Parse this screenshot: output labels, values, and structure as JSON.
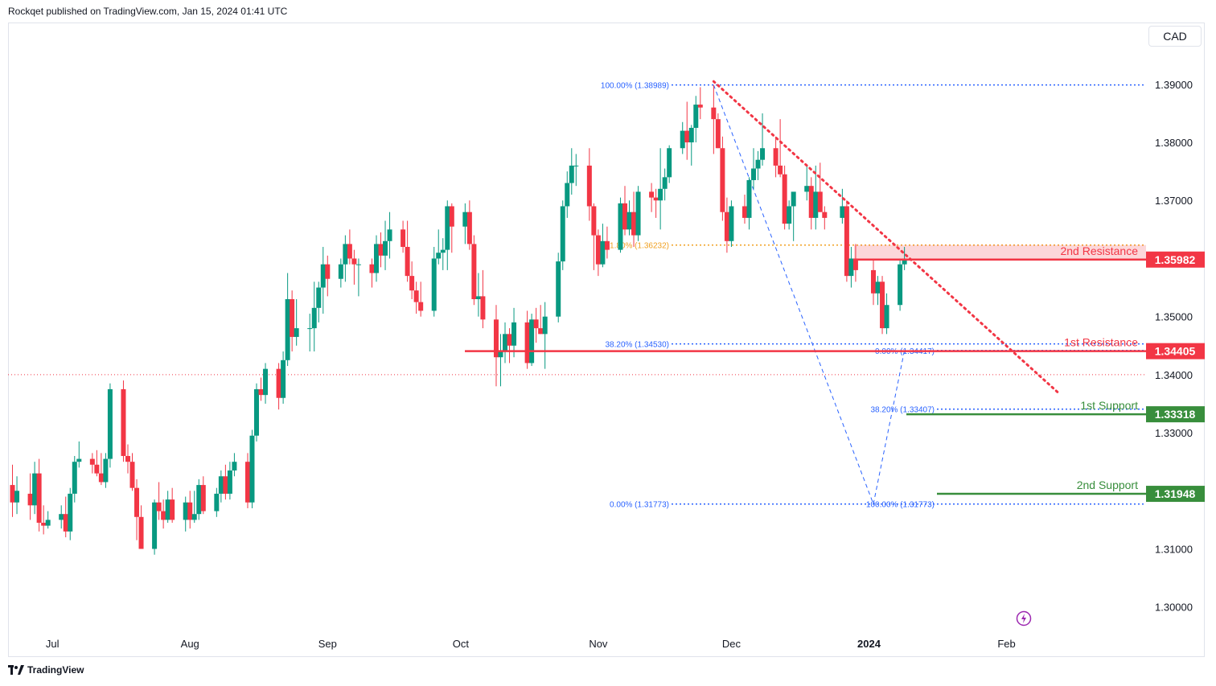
{
  "header": {
    "text": "Rockqet published on TradingView.com, Jan 15, 2024 01:41 UTC"
  },
  "footer": {
    "brand": "TradingView",
    "logo_icon": "tradingview-logo-icon"
  },
  "currency_label": "CAD",
  "colors": {
    "up": "#089981",
    "down": "#f23645",
    "resistance": "#f23645",
    "support": "#388e3c",
    "fib": "#2962ff",
    "fib_gold": "#f0a020",
    "trendline": "#f23645",
    "grid_text": "#131722"
  },
  "chart_data": {
    "type": "candlestick",
    "y_axis": {
      "ticks": [
        1.39,
        1.38,
        1.37,
        1.35,
        1.34,
        1.33,
        1.31,
        1.3
      ],
      "tick_labels": [
        "1.39000",
        "1.38000",
        "1.37000",
        "1.35000",
        "1.34000",
        "1.33000",
        "1.31000",
        "1.30000"
      ],
      "range": [
        1.2965,
        1.4005
      ]
    },
    "x_axis": {
      "labels": [
        {
          "date": "2023-07-01",
          "label": "Jul",
          "bold": false
        },
        {
          "date": "2023-08-01",
          "label": "Aug",
          "bold": false
        },
        {
          "date": "2023-09-01",
          "label": "Sep",
          "bold": false
        },
        {
          "date": "2023-10-01",
          "label": "Oct",
          "bold": false
        },
        {
          "date": "2023-11-01",
          "label": "Nov",
          "bold": false
        },
        {
          "date": "2023-12-01",
          "label": "Dec",
          "bold": false
        },
        {
          "date": "2024-01-01",
          "label": "2024",
          "bold": true
        },
        {
          "date": "2024-02-01",
          "label": "Feb",
          "bold": false
        }
      ],
      "range": [
        "2023-06-21",
        "2024-02-27"
      ]
    },
    "candles": [
      [
        "2023-06-22",
        1.321,
        1.3245,
        1.3155,
        1.318
      ],
      [
        "2023-06-23",
        1.318,
        1.3225,
        1.316,
        1.32
      ],
      [
        "2023-06-26",
        1.3195,
        1.323,
        1.315,
        1.3175
      ],
      [
        "2023-06-27",
        1.3175,
        1.325,
        1.316,
        1.323
      ],
      [
        "2023-06-28",
        1.323,
        1.3255,
        1.313,
        1.3145
      ],
      [
        "2023-06-29",
        1.3145,
        1.3175,
        1.3125,
        1.314
      ],
      [
        "2023-06-30",
        1.314,
        1.3165,
        1.3135,
        1.315
      ],
      [
        "2023-07-03",
        1.315,
        1.3175,
        1.3135,
        1.316
      ],
      [
        "2023-07-04",
        1.316,
        1.319,
        1.312,
        1.313
      ],
      [
        "2023-07-05",
        1.313,
        1.3205,
        1.3115,
        1.3195
      ],
      [
        "2023-07-06",
        1.3195,
        1.326,
        1.318,
        1.325
      ],
      [
        "2023-07-07",
        1.325,
        1.3285,
        1.324,
        1.3255
      ],
      [
        "2023-07-10",
        1.3255,
        1.3265,
        1.323,
        1.3245
      ],
      [
        "2023-07-11",
        1.3245,
        1.327,
        1.3225,
        1.323
      ],
      [
        "2023-07-12",
        1.323,
        1.3265,
        1.321,
        1.3215
      ],
      [
        "2023-07-13",
        1.3215,
        1.3265,
        1.3205,
        1.3255
      ],
      [
        "2023-07-14",
        1.3255,
        1.3385,
        1.324,
        1.3375
      ],
      [
        "2023-07-17",
        1.3375,
        1.339,
        1.325,
        1.326
      ],
      [
        "2023-07-18",
        1.326,
        1.328,
        1.323,
        1.325
      ],
      [
        "2023-07-19",
        1.325,
        1.3265,
        1.32,
        1.3205
      ],
      [
        "2023-07-20",
        1.3205,
        1.322,
        1.3115,
        1.3155
      ],
      [
        "2023-07-21",
        1.3155,
        1.3175,
        1.31,
        1.31
      ],
      [
        "2023-07-24",
        1.31,
        1.3185,
        1.309,
        1.318
      ],
      [
        "2023-07-25",
        1.318,
        1.3215,
        1.315,
        1.3165
      ],
      [
        "2023-07-26",
        1.3165,
        1.3185,
        1.3135,
        1.315
      ],
      [
        "2023-07-27",
        1.315,
        1.32,
        1.3145,
        1.3185
      ],
      [
        "2023-07-28",
        1.3185,
        1.3205,
        1.3145,
        1.315
      ],
      [
        "2023-07-31",
        1.315,
        1.319,
        1.313,
        1.318
      ],
      [
        "2023-08-01",
        1.318,
        1.32,
        1.3135,
        1.315
      ],
      [
        "2023-08-02",
        1.315,
        1.32,
        1.3145,
        1.316
      ],
      [
        "2023-08-03",
        1.316,
        1.322,
        1.315,
        1.321
      ],
      [
        "2023-08-04",
        1.321,
        1.3225,
        1.316,
        1.3165
      ],
      [
        "2023-08-07",
        1.3165,
        1.3205,
        1.3155,
        1.3195
      ],
      [
        "2023-08-08",
        1.3195,
        1.3235,
        1.318,
        1.3225
      ],
      [
        "2023-08-09",
        1.3225,
        1.3245,
        1.3185,
        1.3195
      ],
      [
        "2023-08-10",
        1.3195,
        1.325,
        1.3185,
        1.3235
      ],
      [
        "2023-08-11",
        1.3235,
        1.3265,
        1.3225,
        1.325
      ],
      [
        "2023-08-14",
        1.325,
        1.3265,
        1.317,
        1.318
      ],
      [
        "2023-08-15",
        1.318,
        1.3305,
        1.317,
        1.3295
      ],
      [
        "2023-08-16",
        1.3295,
        1.3385,
        1.3285,
        1.3375
      ],
      [
        "2023-08-17",
        1.3375,
        1.3395,
        1.3355,
        1.3365
      ],
      [
        "2023-08-18",
        1.3365,
        1.342,
        1.335,
        1.341
      ],
      [
        "2023-08-21",
        1.341,
        1.342,
        1.334,
        1.336
      ],
      [
        "2023-08-22",
        1.336,
        1.344,
        1.335,
        1.3425
      ],
      [
        "2023-08-23",
        1.3425,
        1.3575,
        1.3415,
        1.353
      ],
      [
        "2023-08-24",
        1.353,
        1.3545,
        1.344,
        1.3465
      ],
      [
        "2023-08-25",
        1.3465,
        1.353,
        1.345,
        1.348
      ],
      [
        "2023-08-28",
        1.348,
        1.3505,
        1.344,
        1.348
      ],
      [
        "2023-08-29",
        1.348,
        1.356,
        1.344,
        1.3515
      ],
      [
        "2023-08-30",
        1.3515,
        1.356,
        1.349,
        1.355
      ],
      [
        "2023-08-31",
        1.355,
        1.362,
        1.3505,
        1.359
      ],
      [
        "2023-09-01",
        1.359,
        1.3605,
        1.3535,
        1.3565
      ],
      [
        "2023-09-04",
        1.3565,
        1.36,
        1.355,
        1.359
      ],
      [
        "2023-09-05",
        1.359,
        1.364,
        1.356,
        1.3625
      ],
      [
        "2023-09-06",
        1.3625,
        1.365,
        1.359,
        1.36
      ],
      [
        "2023-09-07",
        1.36,
        1.3615,
        1.3555,
        1.359
      ],
      [
        "2023-09-08",
        1.359,
        1.36,
        1.3535,
        1.359
      ],
      [
        "2023-09-11",
        1.359,
        1.36,
        1.355,
        1.3575
      ],
      [
        "2023-09-12",
        1.3575,
        1.364,
        1.356,
        1.3625
      ],
      [
        "2023-09-13",
        1.3625,
        1.3645,
        1.3585,
        1.3605
      ],
      [
        "2023-09-14",
        1.3605,
        1.3665,
        1.358,
        1.363
      ],
      [
        "2023-09-15",
        1.363,
        1.368,
        1.36,
        1.365
      ],
      [
        "2023-09-18",
        1.365,
        1.3665,
        1.361,
        1.362
      ],
      [
        "2023-09-19",
        1.362,
        1.3665,
        1.356,
        1.357
      ],
      [
        "2023-09-20",
        1.357,
        1.3595,
        1.353,
        1.3545
      ],
      [
        "2023-09-21",
        1.3545,
        1.356,
        1.3505,
        1.3525
      ],
      [
        "2023-09-22",
        1.3525,
        1.356,
        1.35,
        1.351
      ],
      [
        "2023-09-25",
        1.351,
        1.362,
        1.35,
        1.36
      ],
      [
        "2023-09-26",
        1.36,
        1.365,
        1.359,
        1.361
      ],
      [
        "2023-09-27",
        1.361,
        1.3635,
        1.358,
        1.3615
      ],
      [
        "2023-09-28",
        1.3615,
        1.37,
        1.358,
        1.369
      ],
      [
        "2023-09-29",
        1.369,
        1.3695,
        1.361,
        1.3655
      ],
      [
        "2023-10-02",
        1.3655,
        1.3695,
        1.3625,
        1.368
      ],
      [
        "2023-10-03",
        1.368,
        1.37,
        1.3615,
        1.3625
      ],
      [
        "2023-10-04",
        1.3625,
        1.364,
        1.352,
        1.353
      ],
      [
        "2023-10-05",
        1.353,
        1.3575,
        1.35,
        1.3535
      ],
      [
        "2023-10-06",
        1.3535,
        1.358,
        1.348,
        1.3495
      ],
      [
        "2023-10-09",
        1.3495,
        1.352,
        1.338,
        1.343
      ],
      [
        "2023-10-10",
        1.343,
        1.347,
        1.338,
        1.344
      ],
      [
        "2023-10-11",
        1.344,
        1.349,
        1.342,
        1.347
      ],
      [
        "2023-10-12",
        1.347,
        1.348,
        1.342,
        1.345
      ],
      [
        "2023-10-13",
        1.345,
        1.3515,
        1.343,
        1.349
      ],
      [
        "2023-10-16",
        1.349,
        1.351,
        1.341,
        1.342
      ],
      [
        "2023-10-17",
        1.342,
        1.3505,
        1.3415,
        1.3495
      ],
      [
        "2023-10-18",
        1.3495,
        1.3515,
        1.3455,
        1.348
      ],
      [
        "2023-10-19",
        1.348,
        1.352,
        1.347,
        1.347
      ],
      [
        "2023-10-20",
        1.347,
        1.3525,
        1.341,
        1.35
      ],
      [
        "2023-10-23",
        1.35,
        1.361,
        1.349,
        1.3595
      ],
      [
        "2023-10-24",
        1.3595,
        1.37,
        1.358,
        1.369
      ],
      [
        "2023-10-25",
        1.369,
        1.375,
        1.367,
        1.373
      ],
      [
        "2023-10-26",
        1.373,
        1.379,
        1.371,
        1.376
      ],
      [
        "2023-10-27",
        1.376,
        1.378,
        1.3725,
        1.376
      ],
      [
        "2023-10-30",
        1.376,
        1.379,
        1.3665,
        1.369
      ],
      [
        "2023-10-31",
        1.369,
        1.3695,
        1.358,
        1.364
      ],
      [
        "2023-11-01",
        1.364,
        1.365,
        1.357,
        1.359
      ],
      [
        "2023-11-02",
        1.359,
        1.366,
        1.3585,
        1.363
      ],
      [
        "2023-11-03",
        1.363,
        1.3655,
        1.36,
        1.3615
      ],
      [
        "2023-11-06",
        1.3615,
        1.3705,
        1.361,
        1.3695
      ],
      [
        "2023-11-07",
        1.3695,
        1.3725,
        1.364,
        1.365
      ],
      [
        "2023-11-08",
        1.365,
        1.37,
        1.364,
        1.368
      ],
      [
        "2023-11-09",
        1.368,
        1.3715,
        1.362,
        1.364
      ],
      [
        "2023-11-10",
        1.364,
        1.3725,
        1.363,
        1.3715
      ],
      [
        "2023-11-13",
        1.3715,
        1.373,
        1.368,
        1.3705
      ],
      [
        "2023-11-14",
        1.3705,
        1.372,
        1.367,
        1.37
      ],
      [
        "2023-11-15",
        1.37,
        1.379,
        1.365,
        1.372
      ],
      [
        "2023-11-16",
        1.372,
        1.3755,
        1.37,
        1.374
      ],
      [
        "2023-11-17",
        1.374,
        1.3795,
        1.373,
        1.379
      ],
      [
        "2023-11-20",
        1.379,
        1.3835,
        1.378,
        1.382
      ],
      [
        "2023-11-21",
        1.382,
        1.387,
        1.377,
        1.38
      ],
      [
        "2023-11-22",
        1.38,
        1.383,
        1.376,
        1.3825
      ],
      [
        "2023-11-23",
        1.3825,
        1.388,
        1.38,
        1.3865
      ],
      [
        "2023-11-24",
        1.3865,
        1.3895,
        1.384,
        1.386
      ],
      [
        "2023-11-27",
        1.386,
        1.3899,
        1.378,
        1.384
      ],
      [
        "2023-11-28",
        1.384,
        1.385,
        1.379,
        1.379
      ],
      [
        "2023-11-29",
        1.379,
        1.381,
        1.3665,
        1.368
      ],
      [
        "2023-11-30",
        1.368,
        1.3705,
        1.361,
        1.363
      ]
    ],
    "candles_late": [
      [
        "2023-12-01",
        1.363,
        1.37,
        1.362,
        1.369
      ],
      [
        "2023-12-04",
        1.369,
        1.371,
        1.366,
        1.367
      ],
      [
        "2023-12-05",
        1.367,
        1.374,
        1.365,
        1.3735
      ],
      [
        "2023-12-06",
        1.3735,
        1.379,
        1.372,
        1.3755
      ],
      [
        "2023-12-07",
        1.3755,
        1.3785,
        1.3735,
        1.377
      ],
      [
        "2023-12-08",
        1.377,
        1.385,
        1.376,
        1.379
      ],
      [
        "2023-12-11",
        1.379,
        1.381,
        1.374,
        1.376
      ],
      [
        "2023-12-12",
        1.376,
        1.384,
        1.374,
        1.3745
      ],
      [
        "2023-12-13",
        1.3745,
        1.376,
        1.365,
        1.366
      ],
      [
        "2023-12-14",
        1.366,
        1.37,
        1.365,
        1.369
      ],
      [
        "2023-12-15",
        1.369,
        1.37,
        1.363,
        1.3715
      ],
      [
        "2023-12-18",
        1.3715,
        1.376,
        1.37,
        1.3725
      ],
      [
        "2023-12-19",
        1.3725,
        1.374,
        1.365,
        1.367
      ],
      [
        "2023-12-20",
        1.367,
        1.376,
        1.365,
        1.3715
      ],
      [
        "2023-12-21",
        1.3715,
        1.3765,
        1.368,
        1.368
      ],
      [
        "2023-12-22",
        1.368,
        1.369,
        1.365,
        1.367
      ],
      [
        "2023-12-26",
        1.367,
        1.372,
        1.366,
        1.369
      ],
      [
        "2023-12-27",
        1.369,
        1.37,
        1.356,
        1.357
      ],
      [
        "2023-12-28",
        1.357,
        1.362,
        1.355,
        1.36
      ],
      [
        "2023-12-29",
        1.36,
        1.3625,
        1.356,
        1.358
      ],
      [
        "2024-01-02",
        1.358,
        1.36,
        1.352,
        1.354
      ],
      [
        "2024-01-03",
        1.354,
        1.357,
        1.352,
        1.356
      ],
      [
        "2024-01-04",
        1.356,
        1.357,
        1.347,
        1.348
      ],
      [
        "2024-01-05",
        1.348,
        1.354,
        1.347,
        1.352
      ],
      [
        "2024-01-08",
        1.352,
        1.36,
        1.351,
        1.359
      ],
      [
        "2024-01-09",
        1.359,
        1.362,
        1.358,
        1.36
      ]
    ],
    "annotations": {
      "resistance": [
        {
          "level": 1.35982,
          "label": "2nd Resistance",
          "price_label": "1.35982"
        },
        {
          "level": 1.34405,
          "label": "1st Resistance",
          "price_label": "1.34405"
        }
      ],
      "support": [
        {
          "level": 1.33318,
          "label": "1st Support",
          "price_label": "1.33318"
        },
        {
          "level": 1.31948,
          "label": "2nd Support",
          "price_label": "1.31948"
        }
      ],
      "fib_levels": [
        {
          "label": "100.00% (1.38989)",
          "value": 1.38989
        },
        {
          "label": "61.80% (1.36232)",
          "value": 1.36232
        },
        {
          "label": "38.20% (1.34530)",
          "value": 1.3453
        },
        {
          "label": "0.00% (1.31773)",
          "value": 1.31773
        },
        {
          "label": "0.00% (1.34417)",
          "value": 1.34417
        },
        {
          "label": "38.20% (1.33407)",
          "value": 1.33407
        },
        {
          "label": "100.00% (1.31773)",
          "value": 1.31773
        }
      ],
      "current_price": 1.34
    }
  }
}
